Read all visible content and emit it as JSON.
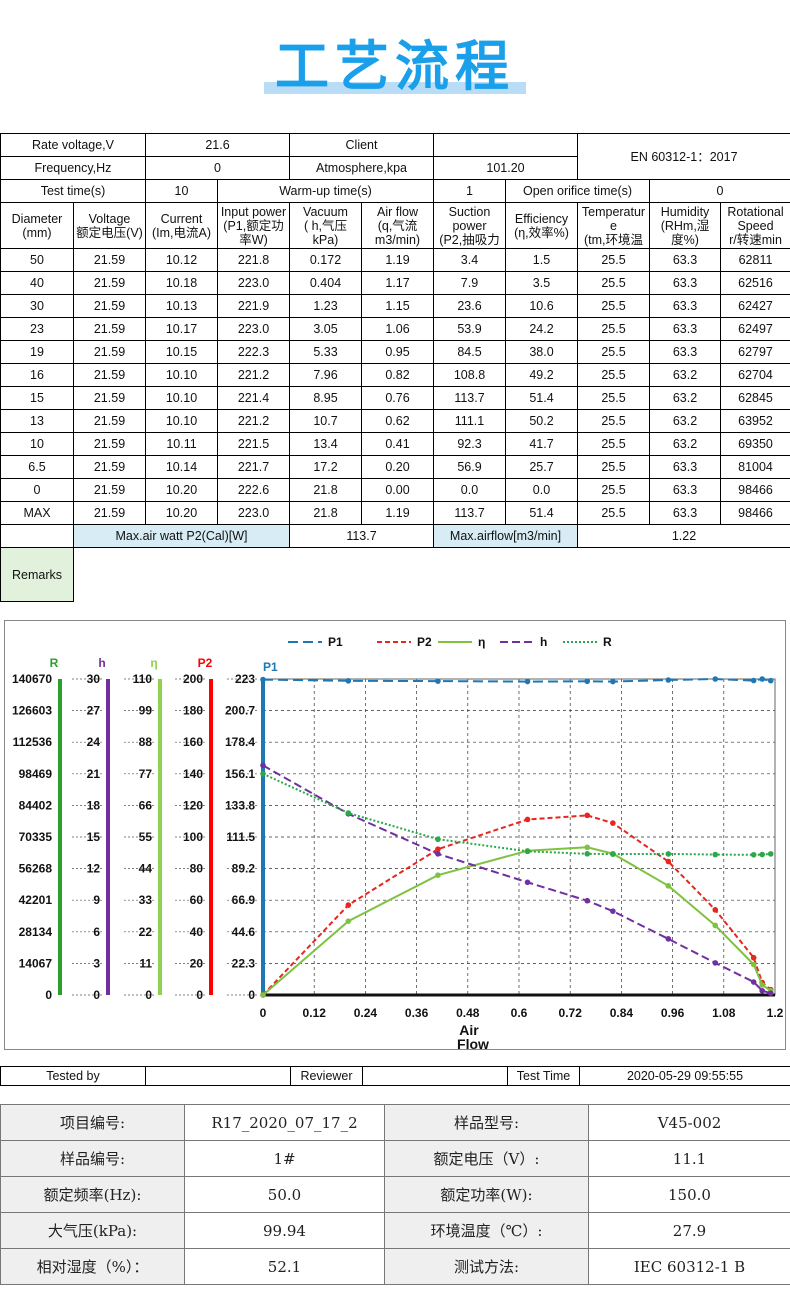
{
  "page_title": "工艺流程",
  "info": {
    "rate_voltage_label": "Rate voltage,V",
    "rate_voltage": "21.6",
    "client_label": "Client",
    "client": "",
    "standard": "EN 60312-1：2017",
    "frequency_label": "Frequency,Hz",
    "frequency": "0",
    "atmosphere_label": "Atmosphere,kpa",
    "atmosphere": "101.20",
    "test_time_label": "Test time(s)",
    "test_time": "10",
    "warmup_label": "Warm-up time(s)",
    "warmup": "1",
    "open_orifice_label": "Open orifice time(s)",
    "open_orifice": "0"
  },
  "columns": [
    {
      "line1": "Diameter",
      "line2": "(mm)",
      "line3": ""
    },
    {
      "line1": "Voltage",
      "line2": "额定电压(V)",
      "line3": ""
    },
    {
      "line1": "Current",
      "line2": "(Im,电流A)",
      "line3": ""
    },
    {
      "line1": "Input power",
      "line2": "(P1,额定功",
      "line3": "率W)"
    },
    {
      "line1": "Vacuum",
      "line2": "( h,气压",
      "line3": "kPa)"
    },
    {
      "line1": "Air flow",
      "line2": "(q,气流",
      "line3": "m3/min)"
    },
    {
      "line1": "Suction",
      "line2": "power",
      "line3": "(P2,抽吸力"
    },
    {
      "line1": "Efficiency",
      "line2": "(η,效率%)",
      "line3": ""
    },
    {
      "line1": "Temperatur",
      "line2": "e",
      "line3": "(tm,环境温"
    },
    {
      "line1": "Humidity",
      "line2": "(RHm,湿",
      "line3": "度%)"
    },
    {
      "line1": "Rotational",
      "line2": "Speed",
      "line3": "r/转速min"
    }
  ],
  "rows": [
    [
      "50",
      "21.59",
      "10.12",
      "221.8",
      "0.172",
      "1.19",
      "3.4",
      "1.5",
      "25.5",
      "63.3",
      "62811"
    ],
    [
      "40",
      "21.59",
      "10.18",
      "223.0",
      "0.404",
      "1.17",
      "7.9",
      "3.5",
      "25.5",
      "63.3",
      "62516"
    ],
    [
      "30",
      "21.59",
      "10.13",
      "221.9",
      "1.23",
      "1.15",
      "23.6",
      "10.6",
      "25.5",
      "63.3",
      "62427"
    ],
    [
      "23",
      "21.59",
      "10.17",
      "223.0",
      "3.05",
      "1.06",
      "53.9",
      "24.2",
      "25.5",
      "63.3",
      "62497"
    ],
    [
      "19",
      "21.59",
      "10.15",
      "222.3",
      "5.33",
      "0.95",
      "84.5",
      "38.0",
      "25.5",
      "63.3",
      "62797"
    ],
    [
      "16",
      "21.59",
      "10.10",
      "221.2",
      "7.96",
      "0.82",
      "108.8",
      "49.2",
      "25.5",
      "63.2",
      "62704"
    ],
    [
      "15",
      "21.59",
      "10.10",
      "221.4",
      "8.95",
      "0.76",
      "113.7",
      "51.4",
      "25.5",
      "63.2",
      "62845"
    ],
    [
      "13",
      "21.59",
      "10.10",
      "221.2",
      "10.7",
      "0.62",
      "111.1",
      "50.2",
      "25.5",
      "63.2",
      "63952"
    ],
    [
      "10",
      "21.59",
      "10.11",
      "221.5",
      "13.4",
      "0.41",
      "92.3",
      "41.7",
      "25.5",
      "63.2",
      "69350"
    ],
    [
      "6.5",
      "21.59",
      "10.14",
      "221.7",
      "17.2",
      "0.20",
      "56.9",
      "25.7",
      "25.5",
      "63.3",
      "81004"
    ],
    [
      "0",
      "21.59",
      "10.20",
      "222.6",
      "21.8",
      "0.00",
      "0.0",
      "0.0",
      "25.5",
      "63.3",
      "98466"
    ],
    [
      "MAX",
      "21.59",
      "10.20",
      "223.0",
      "21.8",
      "1.19",
      "113.7",
      "51.4",
      "25.5",
      "63.3",
      "98466"
    ]
  ],
  "summary": {
    "max_air_watt_label": "Max.air watt P2(Cal)[W]",
    "max_air_watt": "113.7",
    "max_airflow_label": "Max.airflow[m3/min]",
    "max_airflow": "1.22"
  },
  "remarks_label": "Remarks",
  "chart_data": {
    "type": "line",
    "xlabel": "Air Flow",
    "xlim": [
      0,
      1.2
    ],
    "x_ticks": [
      "0",
      "0.12",
      "0.24",
      "0.36",
      "0.48",
      "0.6",
      "0.72",
      "0.84",
      "0.96",
      "1.08",
      "1.2"
    ],
    "legend_position": "top",
    "grid": true,
    "axes": [
      {
        "name": "R",
        "color": "#2ca02c",
        "ticks": [
          "0",
          "14067",
          "28134",
          "42201",
          "56268",
          "70335",
          "84402",
          "98469",
          "112536",
          "126603",
          "140670"
        ],
        "ylim": [
          0,
          140670
        ]
      },
      {
        "name": "h",
        "color": "#7030a0",
        "ticks": [
          "0",
          "3",
          "6",
          "9",
          "12",
          "15",
          "18",
          "21",
          "24",
          "27",
          "30"
        ],
        "ylim": [
          0,
          30
        ]
      },
      {
        "name": "η",
        "color": "#92d050",
        "ticks": [
          "0",
          "11",
          "22",
          "33",
          "44",
          "55",
          "66",
          "77",
          "88",
          "99",
          "110"
        ],
        "ylim": [
          0,
          110
        ]
      },
      {
        "name": "P2",
        "color": "#ff0000",
        "ticks": [
          "0",
          "20",
          "40",
          "60",
          "80",
          "100",
          "120",
          "140",
          "160",
          "180",
          "200"
        ],
        "ylim": [
          0,
          200
        ]
      },
      {
        "name": "P1",
        "color": "#1f77b4",
        "ticks": [
          "0",
          "22.3",
          "44.6",
          "66.9",
          "89.2",
          "111.5",
          "133.8",
          "156.1",
          "178.4",
          "200.7",
          "223"
        ],
        "ylim": [
          0,
          223
        ]
      }
    ],
    "series": [
      {
        "name": "P1",
        "axis": "P1",
        "color": "#1f77b4",
        "dash": "10,5",
        "x": [
          0,
          0.2,
          0.41,
          0.62,
          0.76,
          0.82,
          0.95,
          1.06,
          1.15,
          1.17,
          1.19
        ],
        "y": [
          222.6,
          221.7,
          221.5,
          221.2,
          221.4,
          221.2,
          222.3,
          223.0,
          221.9,
          223.0,
          221.8
        ]
      },
      {
        "name": "P2",
        "axis": "P2",
        "color": "#e8251f",
        "dash": "5,3",
        "x": [
          0,
          0.2,
          0.41,
          0.62,
          0.76,
          0.82,
          0.95,
          1.06,
          1.15,
          1.17,
          1.19
        ],
        "y": [
          0.0,
          56.9,
          92.3,
          111.1,
          113.7,
          108.8,
          84.5,
          53.9,
          23.6,
          7.9,
          3.4
        ]
      },
      {
        "name": "η",
        "axis": "η",
        "color": "#7fc241",
        "dash": "",
        "x": [
          0,
          0.2,
          0.41,
          0.62,
          0.76,
          0.82,
          0.95,
          1.06,
          1.15,
          1.17,
          1.19
        ],
        "y": [
          0.0,
          25.7,
          41.7,
          50.2,
          51.4,
          49.2,
          38.0,
          24.2,
          10.6,
          3.5,
          1.5
        ]
      },
      {
        "name": "h",
        "axis": "h",
        "color": "#7030a0",
        "dash": "8,4",
        "x": [
          0,
          0.2,
          0.41,
          0.62,
          0.76,
          0.82,
          0.95,
          1.06,
          1.15,
          1.17,
          1.19
        ],
        "y": [
          21.8,
          17.2,
          13.4,
          10.7,
          8.95,
          7.96,
          5.33,
          3.05,
          1.23,
          0.404,
          0.172
        ]
      },
      {
        "name": "R",
        "axis": "R",
        "color": "#2aa84a",
        "dash": "2,2",
        "x": [
          0,
          0.2,
          0.41,
          0.62,
          0.76,
          0.82,
          0.95,
          1.06,
          1.15,
          1.17,
          1.19
        ],
        "y": [
          98466,
          81004,
          69350,
          63952,
          62845,
          62704,
          62797,
          62497,
          62427,
          62516,
          62811
        ]
      }
    ]
  },
  "sign": {
    "tested_by_label": "Tested by",
    "tested_by": "",
    "reviewer_label": "Reviewer",
    "reviewer": "",
    "test_time_label": "Test Time",
    "test_time": "2020-05-29 09:55:55"
  },
  "sample": [
    [
      "项目编号:",
      "R17_2020_07_17_2",
      "样品型号:",
      "V45-002"
    ],
    [
      "样品编号:",
      "1#",
      "额定电压（V）:",
      "11.1"
    ],
    [
      "额定频率(Hz):",
      "50.0",
      "额定功率(W):",
      "150.0"
    ],
    [
      "大气压(kPa):",
      "99.94",
      "环境温度（℃）:",
      "27.9"
    ],
    [
      "相对湿度（%）：",
      "52.1",
      "测试方法:",
      "IEC 60312-1 B"
    ]
  ]
}
